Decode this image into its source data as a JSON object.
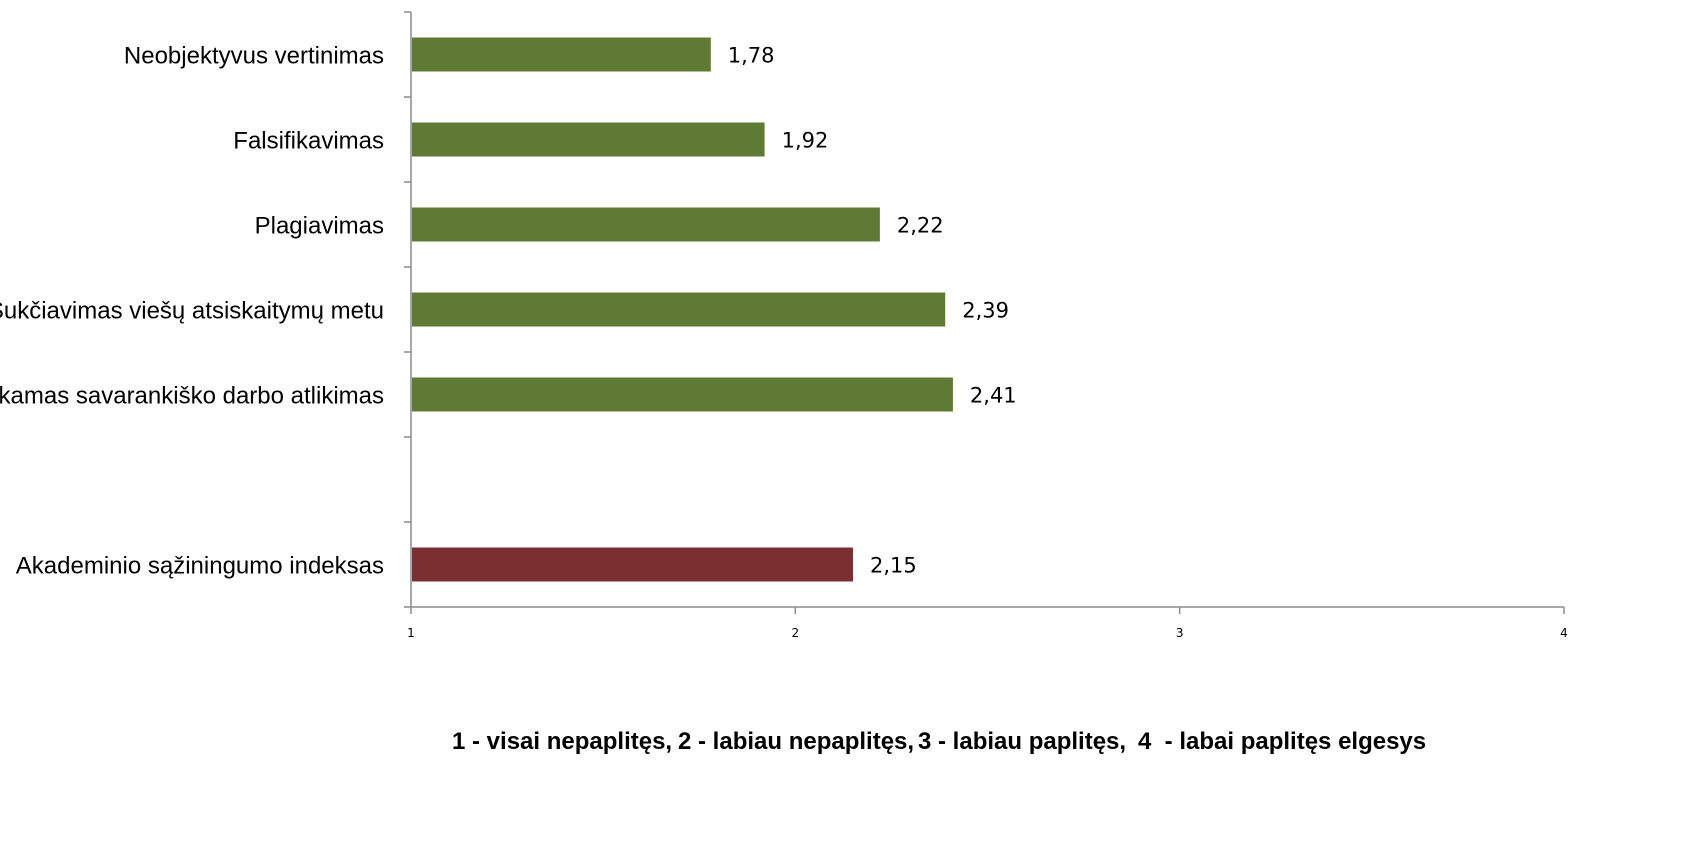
{
  "chart_data": {
    "type": "bar",
    "orientation": "horizontal",
    "categories": [
      "Neobjektyvus vertinimas",
      "Falsifikavimas",
      "Plagiavimas",
      "Sukčiavimas viešų atsiskaitymų metu",
      "Netinkamas savarankiško darbo atlikimas",
      "",
      "Akademinio sąžiningumo indeksas"
    ],
    "values": [
      1.78,
      1.92,
      2.22,
      2.39,
      2.41,
      null,
      2.15
    ],
    "value_labels": [
      "1,78",
      "1,92",
      "2,22",
      "2,39",
      "2,41",
      "",
      "2,15"
    ],
    "bar_colors": [
      "#5f7a34",
      "#5f7a34",
      "#5f7a34",
      "#5f7a34",
      "#5f7a34",
      "",
      "#7a3030"
    ],
    "xlim": [
      1,
      4
    ],
    "xticks": [
      "1",
      "2",
      "3",
      "4"
    ],
    "grid": false,
    "title": "",
    "xlabel": "",
    "ylabel": ""
  },
  "legend_note": {
    "part1": "1 - visai nepaplitęs,",
    "part2": "2 - labiau nepaplitęs,",
    "part3": "3 - labiau paplitęs,",
    "part4": "4  - labai paplitęs elgesys"
  },
  "colors": {
    "primary_bar": "#5f7a34",
    "index_bar": "#7a3030",
    "axis": "#8c8c8c"
  }
}
